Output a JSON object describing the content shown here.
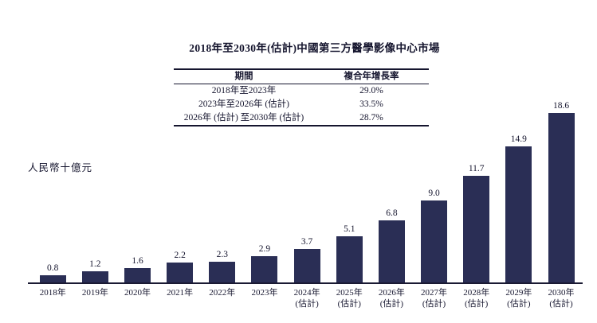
{
  "title": "2018年至2030年(估計)中國第三方醫學影像中心市場",
  "cagr_table": {
    "headers": [
      "期間",
      "複合年增長率"
    ],
    "rows": [
      {
        "period": "2018年至2023年",
        "cagr": "29.0%"
      },
      {
        "period": "2023年至2026年 (估計)",
        "cagr": "33.5%"
      },
      {
        "period": "2026年 (估計) 至2030年 (估計)",
        "cagr": "28.7%"
      }
    ]
  },
  "y_axis_label": "人民幣十億元",
  "chart_data": {
    "type": "bar",
    "title": "2018年至2030年(估計)中國第三方醫學影像中心市場",
    "xlabel": "",
    "ylabel": "人民幣十億元",
    "categories": [
      "2018年",
      "2019年",
      "2020年",
      "2021年",
      "2022年",
      "2023年",
      "2024年",
      "2025年",
      "2026年",
      "2027年",
      "2028年",
      "2029年",
      "2030年"
    ],
    "category_notes": [
      "",
      "",
      "",
      "",
      "",
      "",
      "(估計)",
      "(估計)",
      "(估計)",
      "(估計)",
      "(估計)",
      "(估計)",
      "(估計)"
    ],
    "values": [
      0.8,
      1.2,
      1.6,
      2.2,
      2.3,
      2.9,
      3.7,
      5.1,
      6.8,
      9.0,
      11.7,
      14.9,
      18.6
    ],
    "value_labels": [
      "0.8",
      "1.2",
      "1.6",
      "2.2",
      "2.3",
      "2.9",
      "3.7",
      "5.1",
      "6.8",
      "9.0",
      "11.7",
      "14.9",
      "18.6"
    ],
    "ylim": [
      0,
      20
    ],
    "grid": false,
    "legend": "none",
    "bar_color": "#2a2e55",
    "axis_color": "#1a1a33",
    "text_color": "#15152e"
  }
}
